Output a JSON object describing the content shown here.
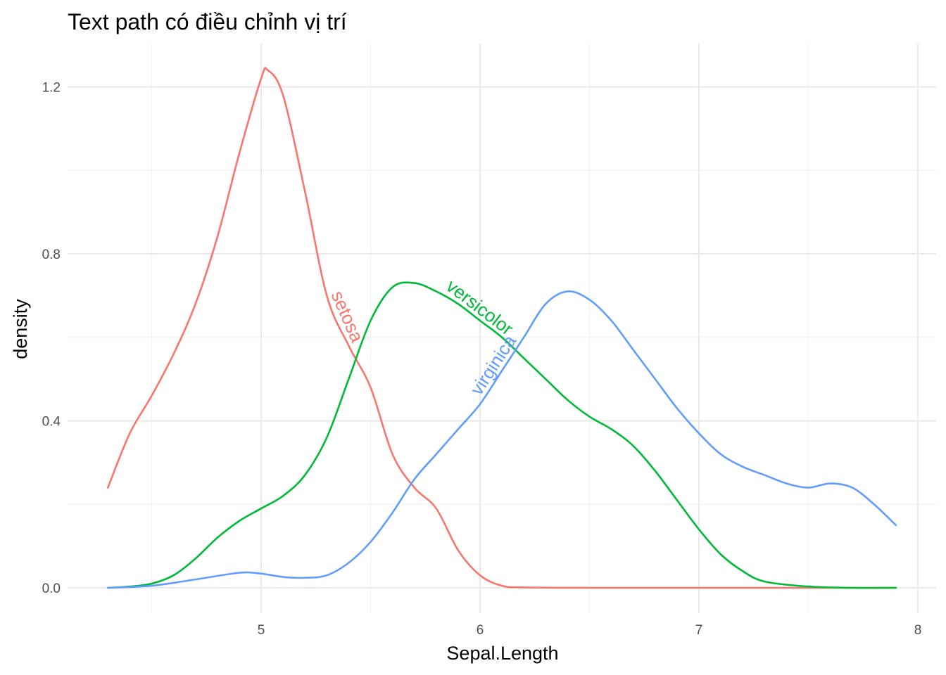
{
  "chart_data": {
    "type": "line",
    "title": "Text path có điều chỉnh vị trí",
    "xlabel": "Sepal.Length",
    "ylabel": "density",
    "xlim": [
      4.3,
      7.9
    ],
    "ylim": [
      0.0,
      1.24
    ],
    "x_ticks": [
      5,
      6,
      7,
      8
    ],
    "x_tick_labels": [
      "5",
      "6",
      "7",
      "8"
    ],
    "y_ticks": [
      0.0,
      0.4,
      0.8,
      1.2
    ],
    "y_tick_labels": [
      "0.0",
      "0.4",
      "0.8",
      "1.2"
    ],
    "grid": true,
    "legend": "none",
    "series": [
      {
        "name": "setosa",
        "color": "#F8766D",
        "label_at_x": 5.35,
        "points": [
          [
            4.3,
            0.24
          ],
          [
            4.4,
            0.37
          ],
          [
            4.5,
            0.46
          ],
          [
            4.6,
            0.56
          ],
          [
            4.7,
            0.68
          ],
          [
            4.8,
            0.84
          ],
          [
            4.9,
            1.04
          ],
          [
            5.0,
            1.22
          ],
          [
            5.03,
            1.24
          ],
          [
            5.1,
            1.18
          ],
          [
            5.2,
            0.95
          ],
          [
            5.3,
            0.7
          ],
          [
            5.4,
            0.58
          ],
          [
            5.5,
            0.48
          ],
          [
            5.6,
            0.32
          ],
          [
            5.7,
            0.24
          ],
          [
            5.8,
            0.19
          ],
          [
            5.9,
            0.09
          ],
          [
            6.0,
            0.03
          ],
          [
            6.1,
            0.005
          ],
          [
            6.2,
            0.001
          ],
          [
            6.5,
            0.0
          ],
          [
            7.0,
            0.0
          ],
          [
            7.9,
            0.0
          ]
        ]
      },
      {
        "name": "versicolor",
        "color": "#00BA38",
        "label_at_x": 5.97,
        "points": [
          [
            4.3,
            0.0
          ],
          [
            4.4,
            0.003
          ],
          [
            4.5,
            0.01
          ],
          [
            4.6,
            0.03
          ],
          [
            4.7,
            0.07
          ],
          [
            4.8,
            0.12
          ],
          [
            4.9,
            0.16
          ],
          [
            5.0,
            0.19
          ],
          [
            5.1,
            0.22
          ],
          [
            5.2,
            0.27
          ],
          [
            5.3,
            0.36
          ],
          [
            5.4,
            0.5
          ],
          [
            5.5,
            0.64
          ],
          [
            5.6,
            0.72
          ],
          [
            5.7,
            0.73
          ],
          [
            5.8,
            0.71
          ],
          [
            5.9,
            0.68
          ],
          [
            6.0,
            0.64
          ],
          [
            6.1,
            0.6
          ],
          [
            6.2,
            0.55
          ],
          [
            6.3,
            0.5
          ],
          [
            6.4,
            0.45
          ],
          [
            6.5,
            0.41
          ],
          [
            6.6,
            0.38
          ],
          [
            6.7,
            0.34
          ],
          [
            6.8,
            0.28
          ],
          [
            6.9,
            0.21
          ],
          [
            7.0,
            0.14
          ],
          [
            7.1,
            0.08
          ],
          [
            7.2,
            0.04
          ],
          [
            7.3,
            0.015
          ],
          [
            7.5,
            0.003
          ],
          [
            7.7,
            0.0
          ],
          [
            7.9,
            0.0
          ]
        ]
      },
      {
        "name": "virginica",
        "color": "#619CFF",
        "label_at_x": 6.1,
        "points": [
          [
            4.3,
            0.0
          ],
          [
            4.5,
            0.005
          ],
          [
            4.7,
            0.02
          ],
          [
            4.9,
            0.036
          ],
          [
            5.0,
            0.034
          ],
          [
            5.1,
            0.026
          ],
          [
            5.2,
            0.024
          ],
          [
            5.3,
            0.03
          ],
          [
            5.4,
            0.06
          ],
          [
            5.5,
            0.11
          ],
          [
            5.6,
            0.18
          ],
          [
            5.7,
            0.26
          ],
          [
            5.8,
            0.32
          ],
          [
            5.9,
            0.38
          ],
          [
            6.0,
            0.44
          ],
          [
            6.1,
            0.52
          ],
          [
            6.2,
            0.6
          ],
          [
            6.3,
            0.68
          ],
          [
            6.4,
            0.71
          ],
          [
            6.5,
            0.69
          ],
          [
            6.6,
            0.64
          ],
          [
            6.7,
            0.57
          ],
          [
            6.8,
            0.5
          ],
          [
            6.9,
            0.43
          ],
          [
            7.0,
            0.37
          ],
          [
            7.1,
            0.32
          ],
          [
            7.2,
            0.29
          ],
          [
            7.3,
            0.27
          ],
          [
            7.4,
            0.25
          ],
          [
            7.5,
            0.24
          ],
          [
            7.6,
            0.25
          ],
          [
            7.7,
            0.24
          ],
          [
            7.8,
            0.2
          ],
          [
            7.9,
            0.15
          ]
        ]
      }
    ]
  }
}
